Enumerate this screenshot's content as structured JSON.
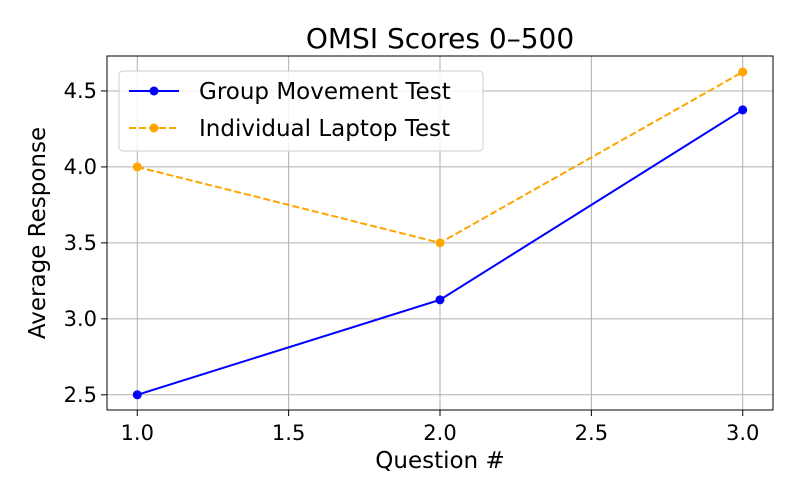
{
  "chart_data": {
    "type": "line",
    "title": "OMSI Scores 0–500",
    "xlabel": "Question #",
    "ylabel": "Average Response",
    "xlim": [
      0.9,
      3.1
    ],
    "ylim": [
      2.4,
      4.73
    ],
    "xticks": [
      1.0,
      1.5,
      2.0,
      2.5,
      3.0
    ],
    "yticks": [
      2.5,
      3.0,
      3.5,
      4.0,
      4.5
    ],
    "xtick_labels": [
      "1.0",
      "1.5",
      "2.0",
      "2.5",
      "3.0"
    ],
    "ytick_labels": [
      "2.5",
      "3.0",
      "3.5",
      "4.0",
      "4.5"
    ],
    "grid": true,
    "legend_position": "top-left",
    "x": [
      1.0,
      2.0,
      3.0
    ],
    "series": [
      {
        "name": "Group Movement Test",
        "values": [
          2.5,
          3.125,
          4.375
        ],
        "color": "#0000ff",
        "style": "solid",
        "marker": "circle"
      },
      {
        "name": "Individual Laptop Test",
        "values": [
          4.0,
          3.5,
          4.625
        ],
        "color": "#ffa500",
        "style": "dashed",
        "marker": "circle"
      }
    ]
  }
}
